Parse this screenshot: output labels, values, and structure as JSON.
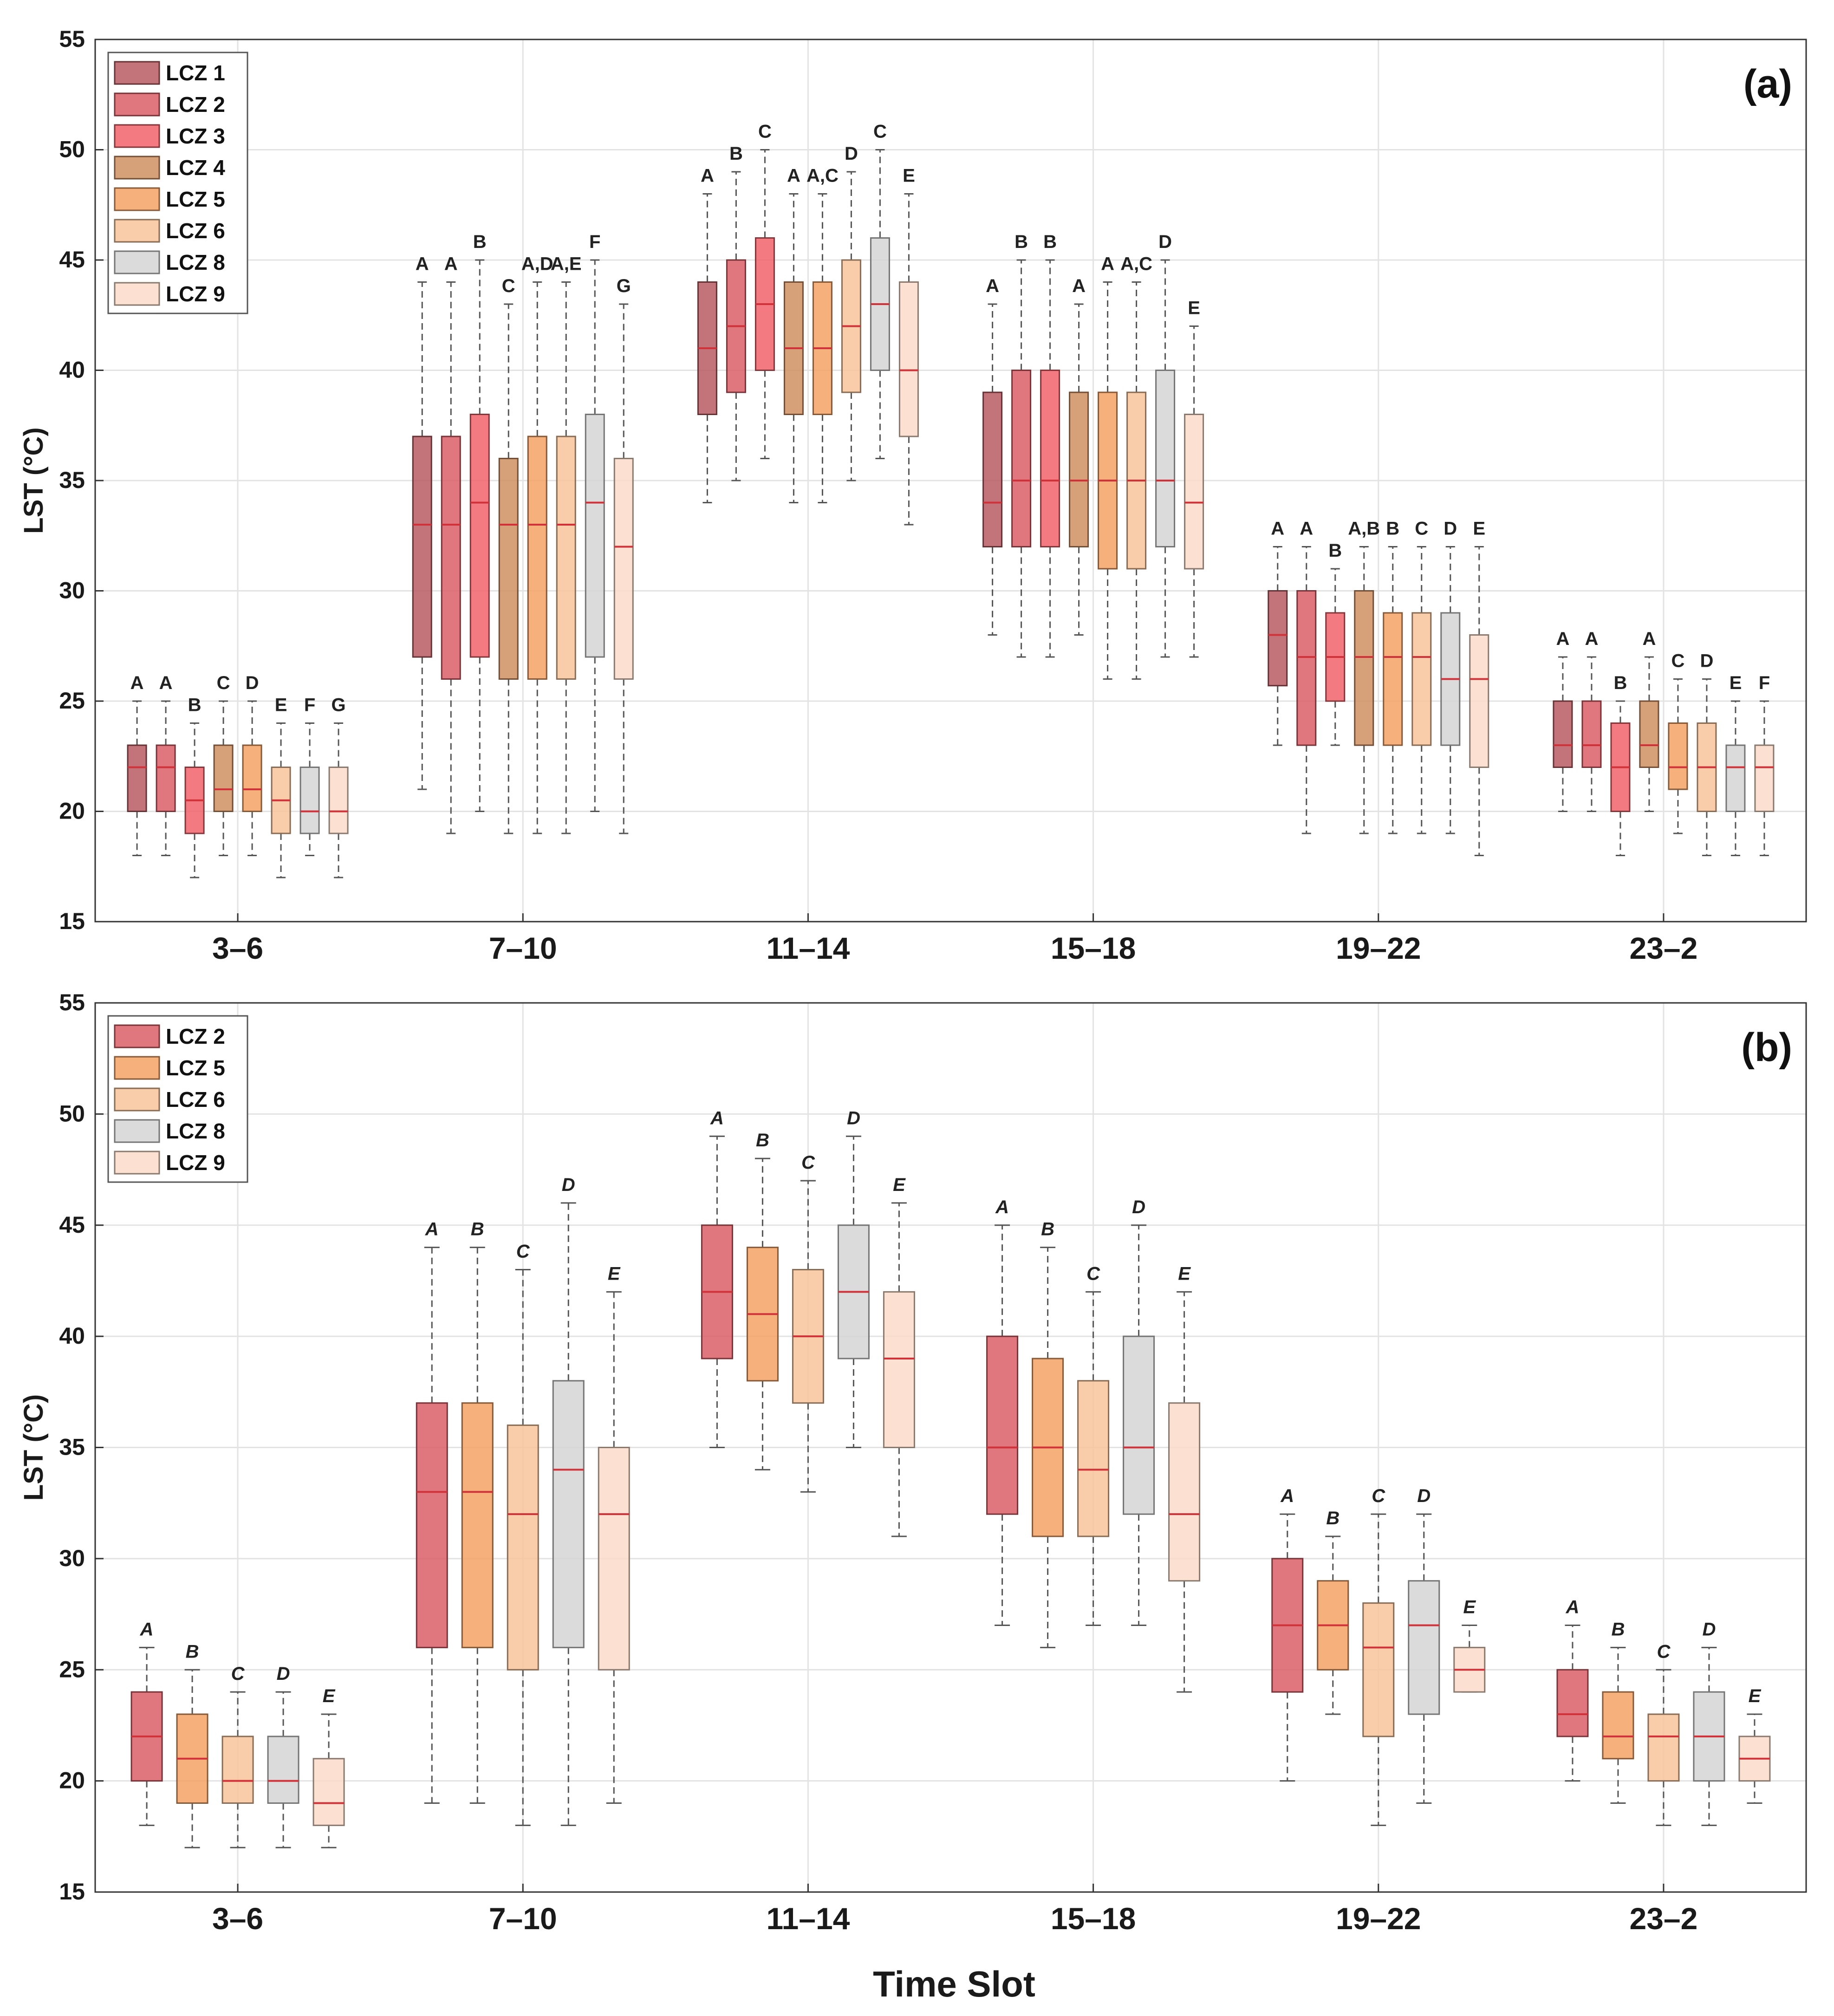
{
  "chart_data": [
    {
      "panel_label": "(a)",
      "type": "box",
      "ylabel": "LST (°C)",
      "xlabel": "",
      "ylim": [
        15,
        55
      ],
      "yticks": [
        15,
        20,
        25,
        30,
        35,
        40,
        45,
        50,
        55
      ],
      "grid": true,
      "legend_position": "top-left",
      "categories": [
        "3–6",
        "7–10",
        "11–14",
        "15–18",
        "19–22",
        "23–2"
      ],
      "series": [
        {
          "name": "LCZ 1",
          "color": "#b85c63",
          "boxes": [
            [
              18,
              20,
              22,
              23,
              25
            ],
            [
              21,
              27,
              33,
              37,
              44
            ],
            [
              34,
              38,
              41,
              44,
              48
            ],
            [
              28,
              32,
              34,
              39,
              43
            ],
            [
              23,
              25.7,
              28,
              30,
              32
            ],
            [
              20,
              22,
              23,
              25,
              27
            ]
          ],
          "letters": [
            "A",
            "A",
            "A",
            "A",
            "A",
            "A"
          ]
        },
        {
          "name": "LCZ 2",
          "color": "#db5f67",
          "boxes": [
            [
              18,
              20,
              22,
              23,
              25
            ],
            [
              19,
              26,
              33,
              37,
              44
            ],
            [
              35,
              39,
              42,
              45,
              49
            ],
            [
              27,
              32,
              35,
              40,
              45
            ],
            [
              19,
              23,
              27,
              30,
              32
            ],
            [
              20,
              22,
              23,
              25,
              27
            ]
          ],
          "letters": [
            "A",
            "A",
            "B",
            "B",
            "A",
            "A"
          ]
        },
        {
          "name": "LCZ 3",
          "color": "#f2636b",
          "boxes": [
            [
              17,
              19,
              20.5,
              22,
              24
            ],
            [
              20,
              27,
              34,
              38,
              45
            ],
            [
              36,
              40,
              43,
              46,
              50
            ],
            [
              27,
              32,
              35,
              40,
              45
            ],
            [
              23,
              25,
              27,
              29,
              31
            ],
            [
              18,
              20,
              22,
              24,
              25
            ]
          ],
          "letters": [
            "B",
            "B",
            "C",
            "B",
            "B",
            "B"
          ]
        },
        {
          "name": "LCZ 4",
          "color": "#cf8f62",
          "boxes": [
            [
              18,
              20,
              21,
              23,
              25
            ],
            [
              19,
              26,
              33,
              36,
              43
            ],
            [
              34,
              38,
              41,
              44,
              48
            ],
            [
              28,
              32,
              35,
              39,
              43
            ],
            [
              19,
              23,
              27,
              30,
              32
            ],
            [
              20,
              22,
              23,
              25,
              27
            ]
          ],
          "letters": [
            "C",
            "C",
            "A",
            "A",
            "A,B",
            "A"
          ]
        },
        {
          "name": "LCZ 5",
          "color": "#f4a265",
          "boxes": [
            [
              18,
              20,
              21,
              23,
              25
            ],
            [
              19,
              26,
              33,
              37,
              44
            ],
            [
              34,
              38,
              41,
              44,
              48
            ],
            [
              26,
              31,
              35,
              39,
              44
            ],
            [
              19,
              23,
              27,
              29,
              32
            ],
            [
              19,
              21,
              22,
              24,
              26
            ]
          ],
          "letters": [
            "D",
            "A,D",
            "A,C",
            "A",
            "B",
            "C"
          ]
        },
        {
          "name": "LCZ 6",
          "color": "#f8c49a",
          "boxes": [
            [
              17,
              19,
              20.5,
              22,
              24
            ],
            [
              19,
              26,
              33,
              37,
              44
            ],
            [
              35,
              39,
              42,
              45,
              49
            ],
            [
              26,
              31,
              35,
              39,
              44
            ],
            [
              19,
              23,
              27,
              29,
              32
            ],
            [
              18,
              20,
              22,
              24,
              26
            ]
          ],
          "letters": [
            "E",
            "A,E",
            "D",
            "A,C",
            "C",
            "D"
          ]
        },
        {
          "name": "LCZ 8",
          "color": "#d5d5d5",
          "boxes": [
            [
              18,
              19,
              20,
              22,
              24
            ],
            [
              20,
              27,
              34,
              38,
              45
            ],
            [
              36,
              40,
              43,
              46,
              50
            ],
            [
              27,
              32,
              35,
              40,
              45
            ],
            [
              19,
              23,
              26,
              29,
              32
            ],
            [
              18,
              20,
              22,
              23,
              25
            ]
          ],
          "letters": [
            "F",
            "F",
            "C",
            "D",
            "D",
            "E"
          ]
        },
        {
          "name": "LCZ 9",
          "color": "#fbdcca",
          "boxes": [
            [
              17,
              19,
              20,
              22,
              24
            ],
            [
              19,
              26,
              32,
              36,
              43
            ],
            [
              33,
              37,
              40,
              44,
              48
            ],
            [
              27,
              31,
              34,
              38,
              42
            ],
            [
              18,
              22,
              26,
              28,
              32
            ],
            [
              18,
              20,
              22,
              23,
              25
            ]
          ],
          "letters": [
            "G",
            "G",
            "E",
            "E",
            "E",
            "F"
          ]
        }
      ]
    },
    {
      "panel_label": "(b)",
      "type": "box",
      "ylabel": "LST (°C)",
      "xlabel": "Time Slot",
      "ylim": [
        15,
        55
      ],
      "yticks": [
        15,
        20,
        25,
        30,
        35,
        40,
        45,
        50,
        55
      ],
      "grid": true,
      "legend_position": "top-left",
      "categories": [
        "3–6",
        "7–10",
        "11–14",
        "15–18",
        "19–22",
        "23–2"
      ],
      "series": [
        {
          "name": "LCZ 2",
          "color": "#db5f67",
          "boxes": [
            [
              18,
              20,
              22,
              24,
              26
            ],
            [
              19,
              26,
              33,
              37,
              44
            ],
            [
              35,
              39,
              42,
              45,
              49
            ],
            [
              27,
              32,
              35,
              40,
              45
            ],
            [
              20,
              24,
              27,
              30,
              32
            ],
            [
              20,
              22,
              23,
              25,
              27
            ]
          ],
          "letters": [
            "A",
            "A",
            "A",
            "A",
            "A",
            "A"
          ]
        },
        {
          "name": "LCZ 5",
          "color": "#f4a265",
          "boxes": [
            [
              17,
              19,
              21,
              23,
              25
            ],
            [
              19,
              26,
              33,
              37,
              44
            ],
            [
              34,
              38,
              41,
              44,
              48
            ],
            [
              26,
              31,
              35,
              39,
              44
            ],
            [
              23,
              25,
              27,
              29,
              31
            ],
            [
              19,
              21,
              22,
              24,
              26
            ]
          ],
          "letters": [
            "B",
            "B",
            "B",
            "B",
            "B",
            "B"
          ]
        },
        {
          "name": "LCZ 6",
          "color": "#f8c49a",
          "boxes": [
            [
              17,
              19,
              20,
              22,
              24
            ],
            [
              18,
              25,
              32,
              36,
              43
            ],
            [
              33,
              37,
              40,
              43,
              47
            ],
            [
              27,
              31,
              34,
              38,
              42
            ],
            [
              18,
              22,
              26,
              28,
              32
            ],
            [
              18,
              20,
              22,
              23,
              25
            ]
          ],
          "letters": [
            "C",
            "C",
            "C",
            "C",
            "C",
            "C"
          ]
        },
        {
          "name": "LCZ 8",
          "color": "#d5d5d5",
          "boxes": [
            [
              17,
              19,
              20,
              22,
              24
            ],
            [
              18,
              26,
              34,
              38,
              46
            ],
            [
              35,
              39,
              42,
              45,
              49
            ],
            [
              27,
              32,
              35,
              40,
              45
            ],
            [
              19,
              23,
              27,
              29,
              32
            ],
            [
              18,
              20,
              22,
              24,
              26
            ]
          ],
          "letters": [
            "D",
            "D",
            "D",
            "D",
            "D",
            "D"
          ]
        },
        {
          "name": "LCZ 9",
          "color": "#fbdcca",
          "boxes": [
            [
              17,
              18,
              19,
              21,
              23
            ],
            [
              19,
              25,
              32,
              35,
              42
            ],
            [
              31,
              35,
              39,
              42,
              46
            ],
            [
              24,
              29,
              32,
              37,
              42
            ],
            [
              24,
              24,
              25,
              26,
              27
            ],
            [
              19,
              20,
              21,
              22,
              23
            ]
          ],
          "letters": [
            "E",
            "E",
            "E",
            "E",
            "E",
            "E"
          ]
        }
      ]
    }
  ]
}
